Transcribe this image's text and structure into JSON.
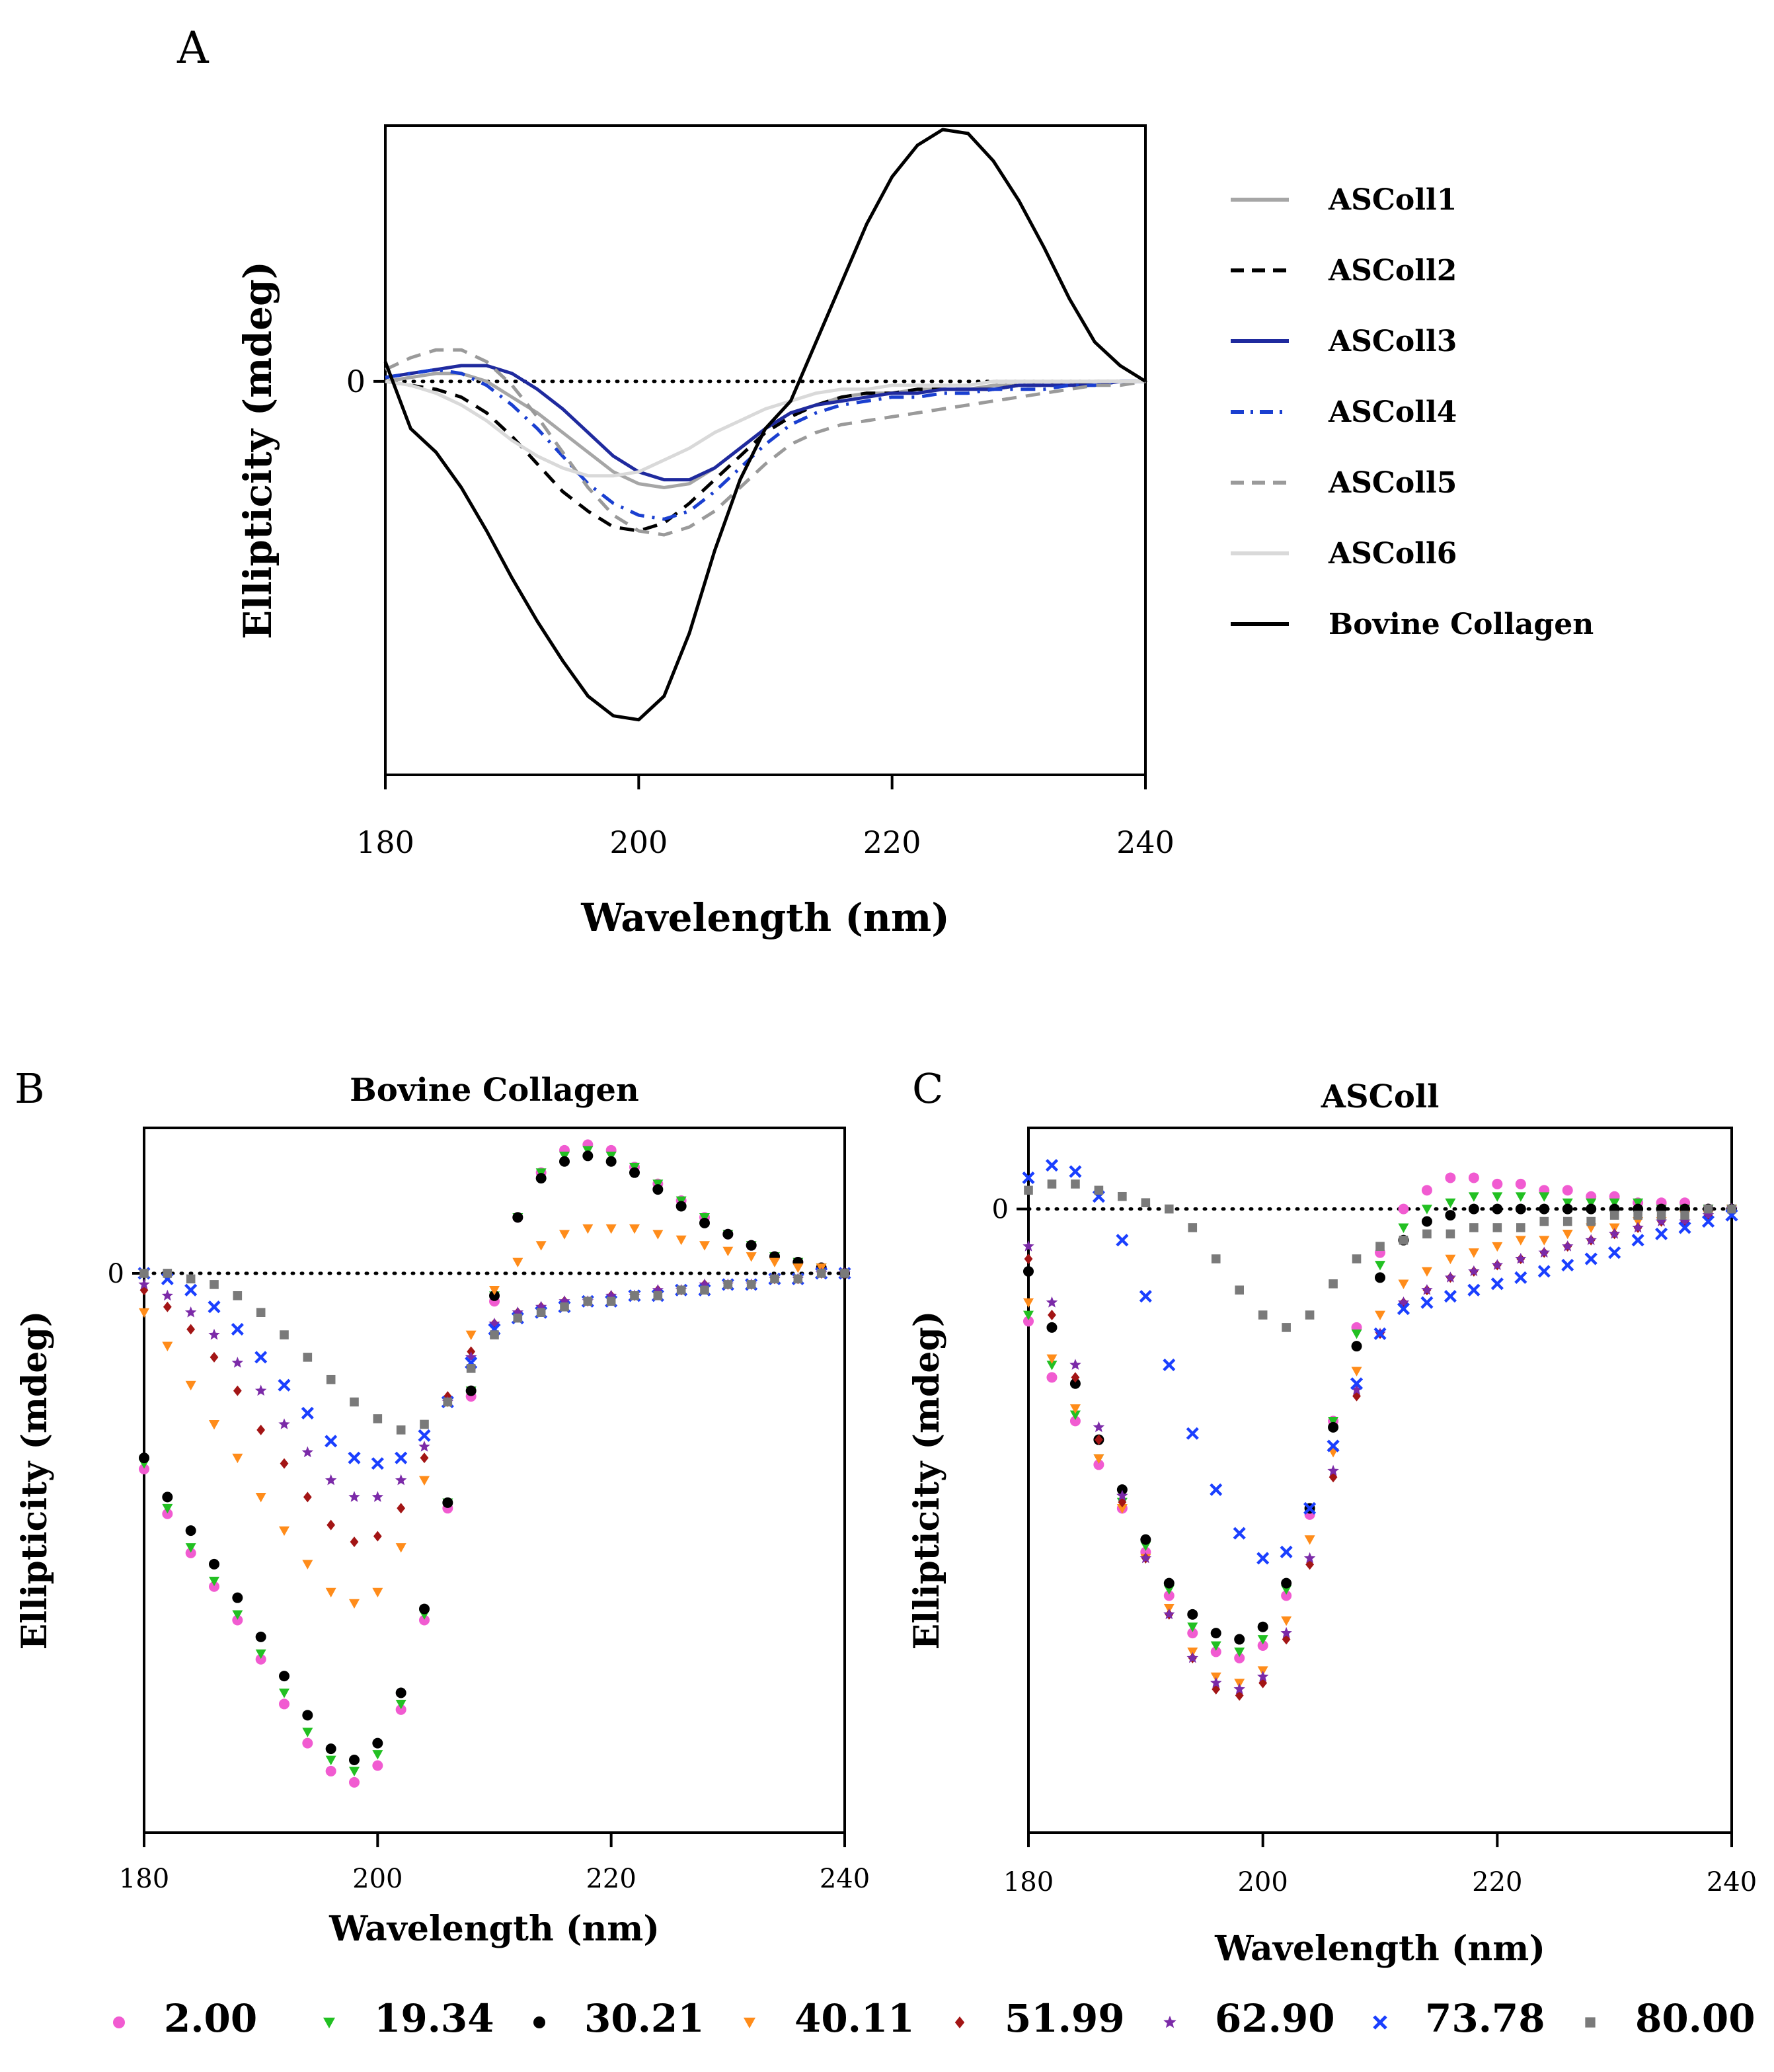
{
  "chart_data": [
    {
      "panel": "A",
      "type": "line",
      "title": "",
      "xlabel": "Wavelength (nm)",
      "ylabel": "Ellipticity (mdeg)",
      "xlim": [
        180,
        240
      ],
      "ylim": [
        -1.0,
        0.65
      ],
      "xticks": [
        "180",
        "200",
        "220",
        "240"
      ],
      "yticks": [
        "0"
      ],
      "zero_line": "dotted",
      "legend_position": "right",
      "x": [
        180,
        182,
        184,
        186,
        188,
        190,
        192,
        194,
        196,
        198,
        200,
        202,
        204,
        206,
        208,
        210,
        212,
        214,
        216,
        218,
        220,
        222,
        224,
        226,
        228,
        230,
        232,
        234,
        236,
        238,
        240
      ],
      "series": [
        {
          "name": "ASColl1",
          "color": "#a6a6a6",
          "style": "solid",
          "values": [
            0.0,
            0.01,
            0.02,
            0.02,
            0.0,
            -0.04,
            -0.08,
            -0.13,
            -0.18,
            -0.23,
            -0.26,
            -0.27,
            -0.26,
            -0.22,
            -0.17,
            -0.12,
            -0.08,
            -0.06,
            -0.04,
            -0.03,
            -0.03,
            -0.02,
            -0.02,
            -0.02,
            -0.01,
            -0.01,
            -0.01,
            -0.01,
            0.0,
            0.0,
            0.0
          ]
        },
        {
          "name": "ASColl2",
          "color": "#000000",
          "style": "dash",
          "values": [
            0.0,
            -0.01,
            -0.02,
            -0.04,
            -0.08,
            -0.14,
            -0.21,
            -0.28,
            -0.33,
            -0.37,
            -0.38,
            -0.36,
            -0.31,
            -0.25,
            -0.19,
            -0.13,
            -0.09,
            -0.06,
            -0.04,
            -0.03,
            -0.03,
            -0.02,
            -0.02,
            -0.02,
            -0.02,
            -0.01,
            -0.01,
            -0.01,
            -0.01,
            0.0,
            0.0
          ]
        },
        {
          "name": "ASColl3",
          "color": "#1f2a9e",
          "style": "solid",
          "values": [
            0.01,
            0.02,
            0.03,
            0.04,
            0.04,
            0.02,
            -0.02,
            -0.07,
            -0.13,
            -0.19,
            -0.23,
            -0.25,
            -0.25,
            -0.22,
            -0.17,
            -0.12,
            -0.08,
            -0.06,
            -0.05,
            -0.04,
            -0.03,
            -0.03,
            -0.02,
            -0.02,
            -0.02,
            -0.01,
            -0.01,
            -0.01,
            -0.01,
            0.0,
            0.0
          ]
        },
        {
          "name": "ASColl4",
          "color": "#1a3fd0",
          "style": "dashdot",
          "values": [
            0.01,
            0.02,
            0.03,
            0.02,
            -0.01,
            -0.06,
            -0.12,
            -0.19,
            -0.26,
            -0.31,
            -0.34,
            -0.35,
            -0.33,
            -0.28,
            -0.22,
            -0.16,
            -0.11,
            -0.08,
            -0.06,
            -0.05,
            -0.04,
            -0.04,
            -0.03,
            -0.03,
            -0.02,
            -0.02,
            -0.02,
            -0.01,
            -0.01,
            0.0,
            0.0
          ]
        },
        {
          "name": "ASColl5",
          "color": "#9a9a9a",
          "style": "dash",
          "values": [
            0.03,
            0.06,
            0.08,
            0.08,
            0.05,
            -0.01,
            -0.09,
            -0.18,
            -0.27,
            -0.34,
            -0.38,
            -0.39,
            -0.37,
            -0.33,
            -0.27,
            -0.21,
            -0.16,
            -0.13,
            -0.11,
            -0.1,
            -0.09,
            -0.08,
            -0.07,
            -0.06,
            -0.05,
            -0.04,
            -0.03,
            -0.02,
            -0.01,
            -0.01,
            0.0
          ]
        },
        {
          "name": "ASColl6",
          "color": "#d9d9d9",
          "style": "solid",
          "values": [
            0.0,
            -0.01,
            -0.03,
            -0.06,
            -0.1,
            -0.15,
            -0.19,
            -0.22,
            -0.24,
            -0.24,
            -0.23,
            -0.2,
            -0.17,
            -0.13,
            -0.1,
            -0.07,
            -0.05,
            -0.03,
            -0.02,
            -0.02,
            -0.01,
            -0.01,
            -0.01,
            -0.01,
            0.0,
            0.0,
            0.0,
            0.0,
            0.0,
            0.0,
            0.0
          ]
        },
        {
          "name": "Bovine Collagen",
          "color": "#000000",
          "style": "solid",
          "values": [
            0.05,
            -0.12,
            -0.18,
            -0.27,
            -0.38,
            -0.5,
            -0.61,
            -0.71,
            -0.8,
            -0.85,
            -0.86,
            -0.8,
            -0.64,
            -0.43,
            -0.25,
            -0.12,
            -0.05,
            0.1,
            0.25,
            0.4,
            0.52,
            0.6,
            0.64,
            0.63,
            0.56,
            0.46,
            0.34,
            0.21,
            0.1,
            0.04,
            0.0
          ]
        }
      ],
      "legend": [
        "ASColl1",
        "ASColl2",
        "ASColl3",
        "ASColl4",
        "ASColl5",
        "ASColl6",
        "Bovine Collagen"
      ]
    },
    {
      "panel": "B",
      "type": "scatter",
      "title": "Bovine Collagen",
      "xlabel": "Wavelength (nm)",
      "ylabel": "Ellipticity (mdeg)",
      "xlim": [
        180,
        240
      ],
      "ylim": [
        -1.0,
        0.26
      ],
      "xticks": [
        "180",
        "200",
        "220",
        "240"
      ],
      "yticks": [
        "0"
      ],
      "zero_line": "dotted",
      "x": [
        180,
        182,
        184,
        186,
        188,
        190,
        192,
        194,
        196,
        198,
        200,
        202,
        204,
        206,
        208,
        210,
        212,
        214,
        216,
        218,
        220,
        222,
        224,
        226,
        228,
        230,
        232,
        234,
        236,
        238,
        240
      ],
      "series": [
        {
          "name": "2.00",
          "color": "#f15bd1",
          "marker": "circle",
          "values": [
            -0.35,
            -0.43,
            -0.5,
            -0.56,
            -0.62,
            -0.69,
            -0.77,
            -0.84,
            -0.89,
            -0.91,
            -0.88,
            -0.78,
            -0.62,
            -0.42,
            -0.22,
            -0.05,
            0.1,
            0.18,
            0.22,
            0.23,
            0.22,
            0.19,
            0.16,
            0.13,
            0.1,
            0.07,
            0.05,
            0.03,
            0.02,
            0.01,
            0.0
          ]
        },
        {
          "name": "19.34",
          "color": "#22c022",
          "marker": "triangle",
          "values": [
            -0.34,
            -0.42,
            -0.49,
            -0.55,
            -0.61,
            -0.68,
            -0.75,
            -0.82,
            -0.87,
            -0.89,
            -0.86,
            -0.77,
            -0.61,
            -0.41,
            -0.21,
            -0.04,
            0.1,
            0.18,
            0.21,
            0.22,
            0.21,
            0.19,
            0.16,
            0.13,
            0.1,
            0.07,
            0.05,
            0.03,
            0.02,
            0.01,
            0.0
          ]
        },
        {
          "name": "30.21",
          "color": "#000000",
          "marker": "circle",
          "values": [
            -0.33,
            -0.4,
            -0.46,
            -0.52,
            -0.58,
            -0.65,
            -0.72,
            -0.79,
            -0.85,
            -0.87,
            -0.84,
            -0.75,
            -0.6,
            -0.41,
            -0.21,
            -0.04,
            0.1,
            0.17,
            0.2,
            0.21,
            0.2,
            0.18,
            0.15,
            0.12,
            0.09,
            0.07,
            0.05,
            0.03,
            0.02,
            0.01,
            0.0
          ]
        },
        {
          "name": "40.11",
          "color": "#ff8c1a",
          "marker": "triangle",
          "values": [
            -0.07,
            -0.13,
            -0.2,
            -0.27,
            -0.33,
            -0.4,
            -0.46,
            -0.52,
            -0.57,
            -0.59,
            -0.57,
            -0.49,
            -0.37,
            -0.23,
            -0.11,
            -0.03,
            0.02,
            0.05,
            0.07,
            0.08,
            0.08,
            0.08,
            0.07,
            0.06,
            0.05,
            0.04,
            0.03,
            0.02,
            0.01,
            0.01,
            0.0
          ]
        },
        {
          "name": "51.99",
          "color": "#a31515",
          "marker": "diamond",
          "values": [
            -0.03,
            -0.06,
            -0.1,
            -0.15,
            -0.21,
            -0.28,
            -0.34,
            -0.4,
            -0.45,
            -0.48,
            -0.47,
            -0.42,
            -0.33,
            -0.22,
            -0.14,
            -0.09,
            -0.07,
            -0.06,
            -0.05,
            -0.05,
            -0.04,
            -0.04,
            -0.03,
            -0.03,
            -0.02,
            -0.02,
            -0.02,
            -0.01,
            -0.01,
            0.0,
            0.0
          ]
        },
        {
          "name": "62.90",
          "color": "#7b2aa8",
          "marker": "star",
          "values": [
            -0.02,
            -0.04,
            -0.07,
            -0.11,
            -0.16,
            -0.21,
            -0.27,
            -0.32,
            -0.37,
            -0.4,
            -0.4,
            -0.37,
            -0.31,
            -0.23,
            -0.15,
            -0.09,
            -0.07,
            -0.06,
            -0.05,
            -0.05,
            -0.04,
            -0.04,
            -0.03,
            -0.03,
            -0.02,
            -0.02,
            -0.02,
            -0.01,
            -0.01,
            0.0,
            0.0
          ]
        },
        {
          "name": "73.78",
          "color": "#1a3fff",
          "marker": "x",
          "values": [
            0.0,
            -0.01,
            -0.03,
            -0.06,
            -0.1,
            -0.15,
            -0.2,
            -0.25,
            -0.3,
            -0.33,
            -0.34,
            -0.33,
            -0.29,
            -0.23,
            -0.16,
            -0.1,
            -0.08,
            -0.07,
            -0.06,
            -0.05,
            -0.05,
            -0.04,
            -0.04,
            -0.03,
            -0.03,
            -0.02,
            -0.02,
            -0.01,
            -0.01,
            0.0,
            0.0
          ]
        },
        {
          "name": "80.00",
          "color": "#7a7a7a",
          "marker": "square",
          "values": [
            0.0,
            0.0,
            -0.01,
            -0.02,
            -0.04,
            -0.07,
            -0.11,
            -0.15,
            -0.19,
            -0.23,
            -0.26,
            -0.28,
            -0.27,
            -0.23,
            -0.17,
            -0.11,
            -0.08,
            -0.07,
            -0.06,
            -0.05,
            -0.05,
            -0.04,
            -0.04,
            -0.03,
            -0.03,
            -0.02,
            -0.02,
            -0.01,
            -0.01,
            0.0,
            0.0
          ]
        }
      ]
    },
    {
      "panel": "C",
      "type": "scatter",
      "title": "ASColl",
      "xlabel": "Wavelength (nm)",
      "ylabel": "Ellipticity (mdeg)",
      "xlim": [
        180,
        240
      ],
      "ylim": [
        -1.0,
        0.13
      ],
      "xticks": [
        "180",
        "200",
        "220",
        "240"
      ],
      "yticks": [
        "0"
      ],
      "zero_line": "dotted",
      "x": [
        180,
        182,
        184,
        186,
        188,
        190,
        192,
        194,
        196,
        198,
        200,
        202,
        204,
        206,
        208,
        210,
        212,
        214,
        216,
        218,
        220,
        222,
        224,
        226,
        228,
        230,
        232,
        234,
        236,
        238,
        240
      ],
      "series": [
        {
          "name": "2.00",
          "color": "#f15bd1",
          "marker": "circle",
          "values": [
            -0.18,
            -0.27,
            -0.34,
            -0.41,
            -0.48,
            -0.55,
            -0.62,
            -0.68,
            -0.71,
            -0.72,
            -0.7,
            -0.62,
            -0.49,
            -0.34,
            -0.19,
            -0.07,
            0.0,
            0.03,
            0.05,
            0.05,
            0.04,
            0.04,
            0.03,
            0.03,
            0.02,
            0.02,
            0.01,
            0.01,
            0.01,
            0.0,
            0.0
          ]
        },
        {
          "name": "19.34",
          "color": "#22c022",
          "marker": "triangle",
          "values": [
            -0.17,
            -0.25,
            -0.33,
            -0.4,
            -0.47,
            -0.54,
            -0.61,
            -0.67,
            -0.7,
            -0.71,
            -0.69,
            -0.61,
            -0.48,
            -0.34,
            -0.2,
            -0.09,
            -0.03,
            0.0,
            0.01,
            0.02,
            0.02,
            0.02,
            0.02,
            0.01,
            0.01,
            0.01,
            0.01,
            0.0,
            0.0,
            0.0,
            0.0
          ]
        },
        {
          "name": "30.21",
          "color": "#000000",
          "marker": "circle",
          "values": [
            -0.1,
            -0.19,
            -0.28,
            -0.37,
            -0.45,
            -0.53,
            -0.6,
            -0.65,
            -0.68,
            -0.69,
            -0.67,
            -0.6,
            -0.48,
            -0.35,
            -0.22,
            -0.11,
            -0.05,
            -0.02,
            -0.01,
            0.0,
            0.0,
            0.0,
            0.0,
            0.0,
            0.0,
            0.0,
            0.0,
            0.0,
            0.0,
            0.0,
            0.0
          ]
        },
        {
          "name": "40.11",
          "color": "#ff8c1a",
          "marker": "triangle",
          "values": [
            -0.15,
            -0.24,
            -0.32,
            -0.4,
            -0.48,
            -0.56,
            -0.64,
            -0.71,
            -0.75,
            -0.76,
            -0.74,
            -0.66,
            -0.53,
            -0.39,
            -0.26,
            -0.17,
            -0.12,
            -0.1,
            -0.08,
            -0.07,
            -0.06,
            -0.05,
            -0.05,
            -0.04,
            -0.03,
            -0.03,
            -0.02,
            -0.02,
            -0.01,
            -0.01,
            0.0
          ]
        },
        {
          "name": "51.99",
          "color": "#a31515",
          "marker": "diamond",
          "values": [
            -0.08,
            -0.17,
            -0.27,
            -0.37,
            -0.47,
            -0.56,
            -0.65,
            -0.72,
            -0.77,
            -0.78,
            -0.76,
            -0.69,
            -0.57,
            -0.43,
            -0.3,
            -0.2,
            -0.15,
            -0.13,
            -0.11,
            -0.1,
            -0.09,
            -0.08,
            -0.07,
            -0.06,
            -0.05,
            -0.04,
            -0.03,
            -0.02,
            -0.02,
            -0.01,
            0.0
          ]
        },
        {
          "name": "62.90",
          "color": "#7b2aa8",
          "marker": "star",
          "values": [
            -0.06,
            -0.15,
            -0.25,
            -0.35,
            -0.46,
            -0.56,
            -0.65,
            -0.72,
            -0.76,
            -0.77,
            -0.75,
            -0.68,
            -0.56,
            -0.42,
            -0.29,
            -0.2,
            -0.15,
            -0.13,
            -0.11,
            -0.1,
            -0.09,
            -0.08,
            -0.07,
            -0.06,
            -0.05,
            -0.04,
            -0.03,
            -0.02,
            -0.02,
            -0.01,
            0.0
          ]
        },
        {
          "name": "73.78",
          "color": "#1a3fff",
          "marker": "x",
          "values": [
            0.05,
            0.07,
            0.06,
            0.02,
            -0.05,
            -0.14,
            -0.25,
            -0.36,
            -0.45,
            -0.52,
            -0.56,
            -0.55,
            -0.48,
            -0.38,
            -0.28,
            -0.2,
            -0.16,
            -0.15,
            -0.14,
            -0.13,
            -0.12,
            -0.11,
            -0.1,
            -0.09,
            -0.08,
            -0.07,
            -0.05,
            -0.04,
            -0.03,
            -0.02,
            -0.01
          ]
        },
        {
          "name": "80.00",
          "color": "#7a7a7a",
          "marker": "square",
          "values": [
            0.03,
            0.04,
            0.04,
            0.03,
            0.02,
            0.01,
            0.0,
            -0.03,
            -0.08,
            -0.13,
            -0.17,
            -0.19,
            -0.17,
            -0.12,
            -0.08,
            -0.06,
            -0.05,
            -0.04,
            -0.04,
            -0.03,
            -0.03,
            -0.03,
            -0.02,
            -0.02,
            -0.02,
            -0.01,
            -0.01,
            -0.01,
            -0.01,
            0.0,
            0.0
          ]
        }
      ]
    }
  ],
  "figure": {
    "panel_labels": [
      "A",
      "B",
      "C"
    ],
    "bottom_legend": [
      "2.00",
      "19.34",
      "30.21",
      "40.11",
      "51.99",
      "62.90",
      "73.78",
      "80.00"
    ]
  }
}
